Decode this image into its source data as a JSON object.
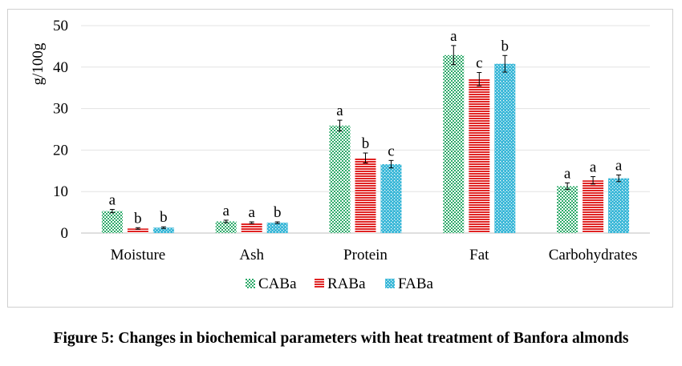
{
  "caption": "Figure 5: Changes in biochemical parameters with heat treatment of Banfora almonds",
  "chart_data": {
    "type": "bar",
    "title": "",
    "xlabel": "",
    "ylabel": "g/100g",
    "ylim": [
      0,
      50
    ],
    "yticks": [
      "0",
      "10",
      "20",
      "30",
      "40",
      "50"
    ],
    "grid": true,
    "legend_position": "bottom",
    "categories": [
      "Moisture",
      "Ash",
      "Protein",
      "Fat",
      "Carbohydrates"
    ],
    "series": [
      {
        "name": "CABa",
        "color": "#2eaa6a",
        "pattern": "checker",
        "values": [
          5.3,
          2.8,
          25.9,
          42.9,
          11.3
        ],
        "errors": [
          0.4,
          0.3,
          1.3,
          2.3,
          0.8
        ],
        "labels": [
          "a",
          "a",
          "a",
          "a",
          "a"
        ]
      },
      {
        "name": "RABa",
        "color": "#e02424",
        "pattern": "horizontal-stripes",
        "values": [
          1.1,
          2.5,
          18.1,
          37.1,
          12.7
        ],
        "errors": [
          0.2,
          0.2,
          1.2,
          1.6,
          0.9
        ],
        "labels": [
          "b",
          "a",
          "b",
          "c",
          "a"
        ]
      },
      {
        "name": "FABa",
        "color": "#3bb8d8",
        "pattern": "dots",
        "values": [
          1.3,
          2.5,
          16.6,
          40.8,
          13.2
        ],
        "errors": [
          0.2,
          0.2,
          0.9,
          2.0,
          0.8
        ],
        "labels": [
          "b",
          "b",
          "c",
          "b",
          "a"
        ]
      }
    ]
  }
}
